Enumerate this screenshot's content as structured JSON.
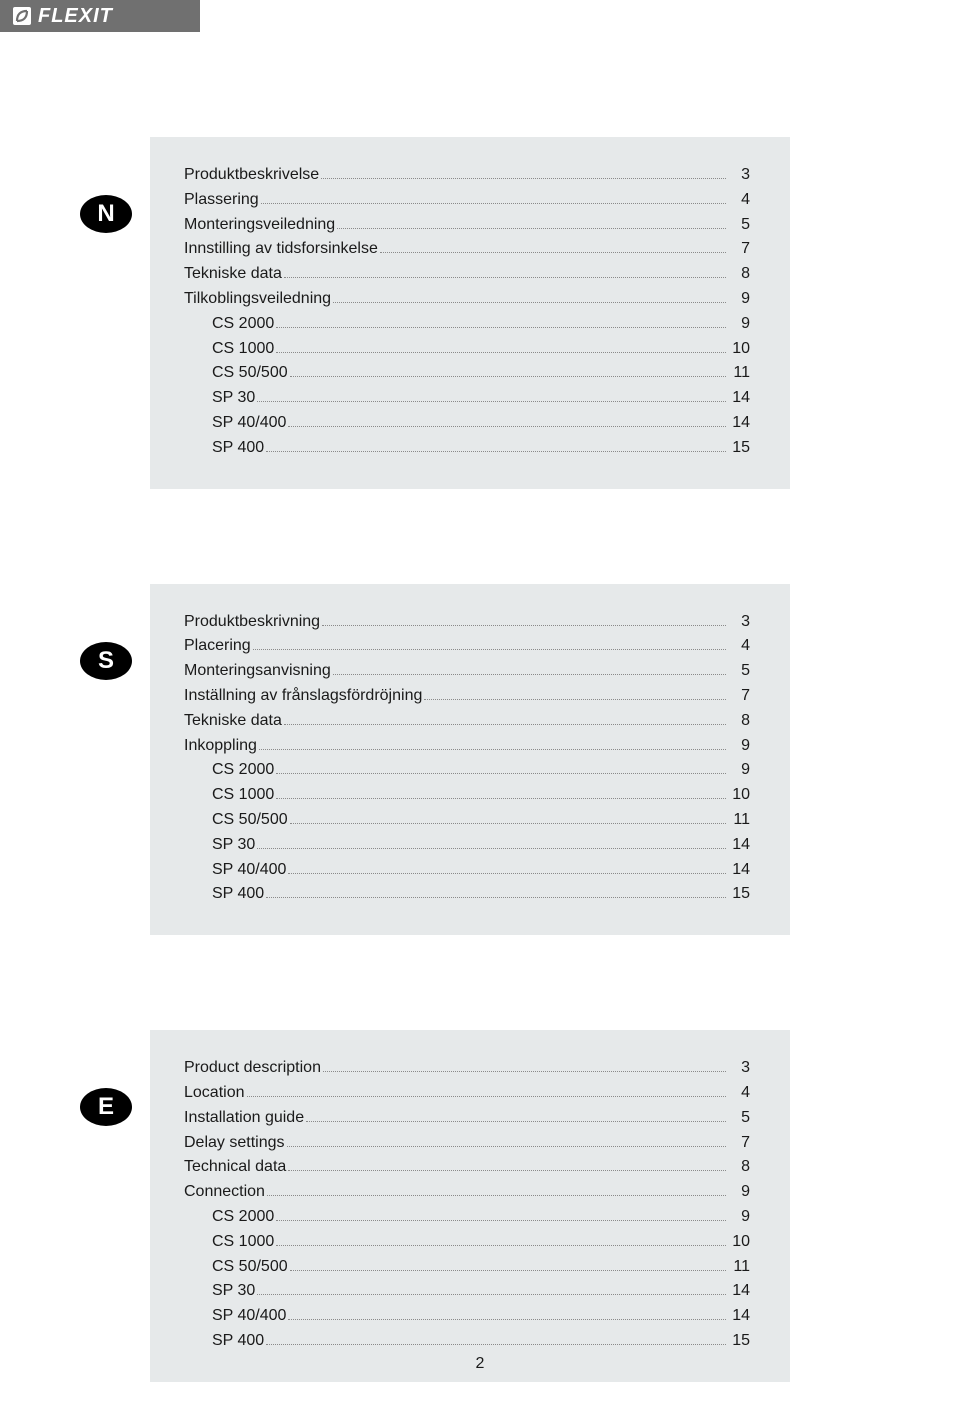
{
  "header": {
    "brand": "FLEXIT"
  },
  "page_number": "2",
  "colors": {
    "header_bg": "#707070",
    "box_bg": "#e6e9ea",
    "badge_bg": "#000000",
    "text": "#1a1a1a"
  },
  "sections": [
    {
      "lang": "N",
      "items": [
        {
          "label": "Produktbeskrivelse",
          "page": "3",
          "indent": false
        },
        {
          "label": "Plassering",
          "page": "4",
          "indent": false
        },
        {
          "label": "Monteringsveiledning",
          "page": "5",
          "indent": false
        },
        {
          "label": "Innstilling av tidsforsinkelse",
          "page": "7",
          "indent": false
        },
        {
          "label": "Tekniske data",
          "page": "8",
          "indent": false
        },
        {
          "label": "Tilkoblingsveiledning",
          "page": "9",
          "indent": false
        },
        {
          "label": "CS 2000",
          "page": "9",
          "indent": true
        },
        {
          "label": "CS 1000",
          "page": "10",
          "indent": true
        },
        {
          "label": "CS 50/500",
          "page": "11",
          "indent": true
        },
        {
          "label": "SP 30",
          "page": "14",
          "indent": true
        },
        {
          "label": "SP 40/400",
          "page": "14",
          "indent": true
        },
        {
          "label": "SP 400",
          "page": "15",
          "indent": true
        }
      ]
    },
    {
      "lang": "S",
      "items": [
        {
          "label": "Produktbeskrivning",
          "page": "3",
          "indent": false
        },
        {
          "label": "Placering",
          "page": "4",
          "indent": false
        },
        {
          "label": "Monteringsanvisning",
          "page": "5",
          "indent": false
        },
        {
          "label": "Inställning av frånslagsfördröjning",
          "page": "7",
          "indent": false
        },
        {
          "label": "Tekniske data",
          "page": "8",
          "indent": false
        },
        {
          "label": "Inkoppling",
          "page": "9",
          "indent": false
        },
        {
          "label": "CS 2000",
          "page": "9",
          "indent": true
        },
        {
          "label": "CS 1000",
          "page": "10",
          "indent": true
        },
        {
          "label": "CS 50/500",
          "page": "11",
          "indent": true
        },
        {
          "label": "SP 30",
          "page": "14",
          "indent": true
        },
        {
          "label": "SP 40/400",
          "page": "14",
          "indent": true
        },
        {
          "label": "SP 400",
          "page": "15",
          "indent": true
        }
      ]
    },
    {
      "lang": "E",
      "items": [
        {
          "label": "Product description",
          "page": "3",
          "indent": false
        },
        {
          "label": "Location",
          "page": "4",
          "indent": false
        },
        {
          "label": "Installation guide",
          "page": "5",
          "indent": false
        },
        {
          "label": "Delay settings",
          "page": "7",
          "indent": false
        },
        {
          "label": "Technical data",
          "page": "8",
          "indent": false
        },
        {
          "label": "Connection",
          "page": "9",
          "indent": false
        },
        {
          "label": "CS 2000",
          "page": "9",
          "indent": true
        },
        {
          "label": "CS 1000",
          "page": "10",
          "indent": true
        },
        {
          "label": "CS 50/500",
          "page": "11",
          "indent": true
        },
        {
          "label": "SP 30",
          "page": "14",
          "indent": true
        },
        {
          "label": "SP 40/400",
          "page": "14",
          "indent": true
        },
        {
          "label": "SP 400",
          "page": "15",
          "indent": true
        }
      ]
    }
  ]
}
